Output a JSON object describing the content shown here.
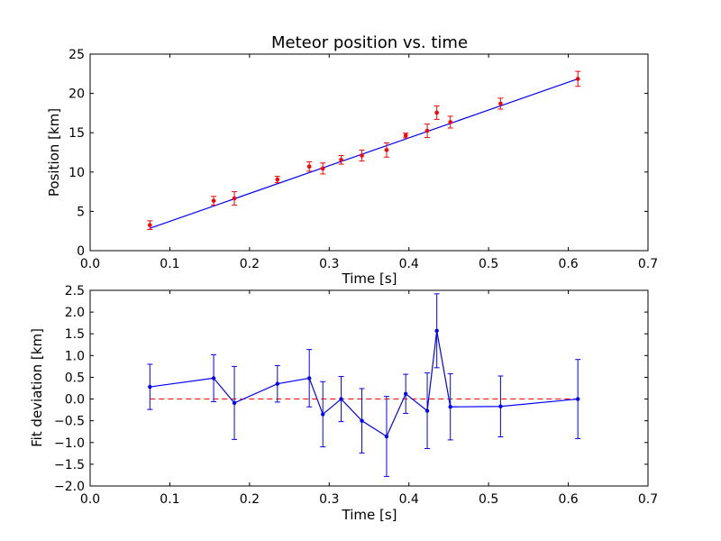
{
  "chart_data": [
    {
      "type": "scatter",
      "title": "Meteor position vs. time",
      "xlabel": "Time [s]",
      "ylabel": "Position [km]",
      "xlim": [
        0.0,
        0.7
      ],
      "ylim": [
        0,
        25
      ],
      "xticks": [
        "0.0",
        "0.1",
        "0.2",
        "0.3",
        "0.4",
        "0.5",
        "0.6",
        "0.7"
      ],
      "yticks": [
        "0",
        "5",
        "10",
        "15",
        "20",
        "25"
      ],
      "grid": false,
      "colors": {
        "points": "#ff0000",
        "fit": "#0000ff"
      },
      "points": {
        "x": [
          0.075,
          0.155,
          0.181,
          0.235,
          0.275,
          0.292,
          0.315,
          0.341,
          0.372,
          0.396,
          0.423,
          0.435,
          0.452,
          0.515,
          0.612
        ],
        "y": [
          3.25,
          6.35,
          6.65,
          9.05,
          10.7,
          10.45,
          11.55,
          12.1,
          12.8,
          14.65,
          15.25,
          17.55,
          16.35,
          18.7,
          21.85
        ],
        "yerr": [
          0.55,
          0.55,
          0.85,
          0.4,
          0.6,
          0.7,
          0.55,
          0.7,
          0.9,
          0.3,
          0.85,
          0.85,
          0.75,
          0.7,
          0.95
        ]
      },
      "fit_line": {
        "x": [
          0.075,
          0.612
        ],
        "y": [
          2.85,
          21.85
        ]
      }
    },
    {
      "type": "line",
      "title": "",
      "xlabel": "Time [s]",
      "ylabel": "Fit deviation [km]",
      "xlim": [
        0.0,
        0.7
      ],
      "ylim": [
        -2.0,
        2.5
      ],
      "xticks": [
        "0.0",
        "0.1",
        "0.2",
        "0.3",
        "0.4",
        "0.5",
        "0.6",
        "0.7"
      ],
      "yticks": [
        "−2.0",
        "−1.5",
        "−1.0",
        "−0.5",
        "0.0",
        "0.5",
        "1.0",
        "1.5",
        "2.0",
        "2.5"
      ],
      "grid": false,
      "colors": {
        "series": "#0000ff",
        "zero_line": "#ff0000"
      },
      "zero_line": {
        "x": [
          0.075,
          0.612
        ],
        "y": [
          0.0,
          0.0
        ]
      },
      "series": [
        {
          "x": [
            0.075,
            0.155,
            0.181,
            0.235,
            0.275,
            0.292,
            0.315,
            0.341,
            0.372,
            0.396,
            0.423,
            0.435,
            0.452,
            0.515,
            0.612
          ],
          "y": [
            0.28,
            0.48,
            -0.09,
            0.35,
            0.48,
            -0.35,
            0.0,
            -0.5,
            -0.86,
            0.12,
            -0.27,
            1.57,
            -0.18,
            -0.17,
            0.0
          ],
          "yerr": [
            0.52,
            0.54,
            0.84,
            0.42,
            0.66,
            0.75,
            0.52,
            0.74,
            0.92,
            0.45,
            0.87,
            0.85,
            0.76,
            0.7,
            0.91
          ]
        }
      ]
    }
  ]
}
